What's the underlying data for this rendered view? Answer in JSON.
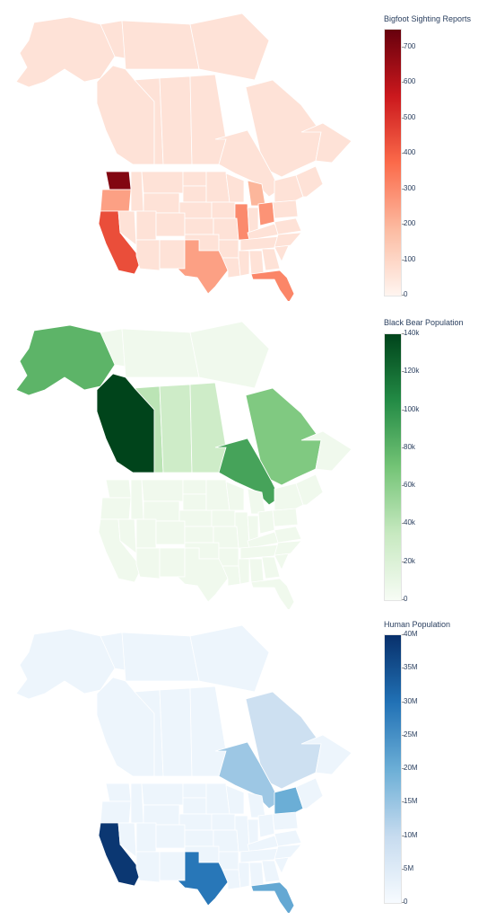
{
  "chart_data": [
    {
      "type": "choropleth",
      "title": "Bigfoot Sighting Reports",
      "colorscale": [
        "#fff5f0",
        "#fcbba1",
        "#fb6a4a",
        "#cb181d",
        "#67000d"
      ],
      "range": [
        0,
        750
      ],
      "ticks": [
        {
          "v": 0,
          "l": "0"
        },
        {
          "v": 100,
          "l": "100"
        },
        {
          "v": 200,
          "l": "200"
        },
        {
          "v": 300,
          "l": "300"
        },
        {
          "v": 400,
          "l": "400"
        },
        {
          "v": 500,
          "l": "500"
        },
        {
          "v": 600,
          "l": "600"
        },
        {
          "v": 700,
          "l": "700"
        }
      ],
      "regions": [
        {
          "name": "Washington",
          "value": 700
        },
        {
          "name": "California",
          "value": 440
        },
        {
          "name": "Oregon",
          "value": 250
        },
        {
          "name": "Florida",
          "value": 310
        },
        {
          "name": "Texas",
          "value": 250
        },
        {
          "name": "Ohio",
          "value": 280
        },
        {
          "name": "Illinois",
          "value": 300
        },
        {
          "name": "Michigan",
          "value": 200
        },
        {
          "name": "Other regions",
          "value": 60
        }
      ]
    },
    {
      "type": "choropleth",
      "title": "Black Bear Population",
      "colorscale": [
        "#f7fcf5",
        "#c7e9c0",
        "#74c476",
        "#238b45",
        "#00441b"
      ],
      "range": [
        0,
        140000
      ],
      "ticks": [
        {
          "v": 0,
          "l": "0"
        },
        {
          "v": 20000,
          "l": "20k"
        },
        {
          "v": 40000,
          "l": "40k"
        },
        {
          "v": 60000,
          "l": "60k"
        },
        {
          "v": 80000,
          "l": "80k"
        },
        {
          "v": 100000,
          "l": "100k"
        },
        {
          "v": 120000,
          "l": "120k"
        },
        {
          "v": 140000,
          "l": "140k"
        }
      ],
      "regions": [
        {
          "name": "British Columbia",
          "value": 140000
        },
        {
          "name": "Alaska",
          "value": 80000
        },
        {
          "name": "Ontario",
          "value": 90000
        },
        {
          "name": "Quebec",
          "value": 65000
        },
        {
          "name": "Alberta",
          "value": 40000
        },
        {
          "name": "Saskatchewan",
          "value": 30000
        },
        {
          "name": "Manitoba",
          "value": 30000
        },
        {
          "name": "Other regions",
          "value": 5000
        }
      ]
    },
    {
      "type": "choropleth",
      "title": "Human Population",
      "colorscale": [
        "#f7fbff",
        "#c6dbef",
        "#6baed6",
        "#2171b5",
        "#08306b"
      ],
      "range": [
        0,
        40000000
      ],
      "ticks": [
        {
          "v": 0,
          "l": "0"
        },
        {
          "v": 5000000,
          "l": "5M"
        },
        {
          "v": 10000000,
          "l": "10M"
        },
        {
          "v": 15000000,
          "l": "15M"
        },
        {
          "v": 20000000,
          "l": "20M"
        },
        {
          "v": 25000000,
          "l": "25M"
        },
        {
          "v": 30000000,
          "l": "30M"
        },
        {
          "v": 35000000,
          "l": "35M"
        },
        {
          "v": 40000000,
          "l": "40M"
        }
      ],
      "regions": [
        {
          "name": "California",
          "value": 39000000
        },
        {
          "name": "Texas",
          "value": 29000000
        },
        {
          "name": "Florida",
          "value": 21000000
        },
        {
          "name": "Ontario",
          "value": 14500000
        },
        {
          "name": "New York",
          "value": 20000000
        },
        {
          "name": "Quebec",
          "value": 8500000
        },
        {
          "name": "Other regions",
          "value": 2000000
        }
      ]
    }
  ]
}
